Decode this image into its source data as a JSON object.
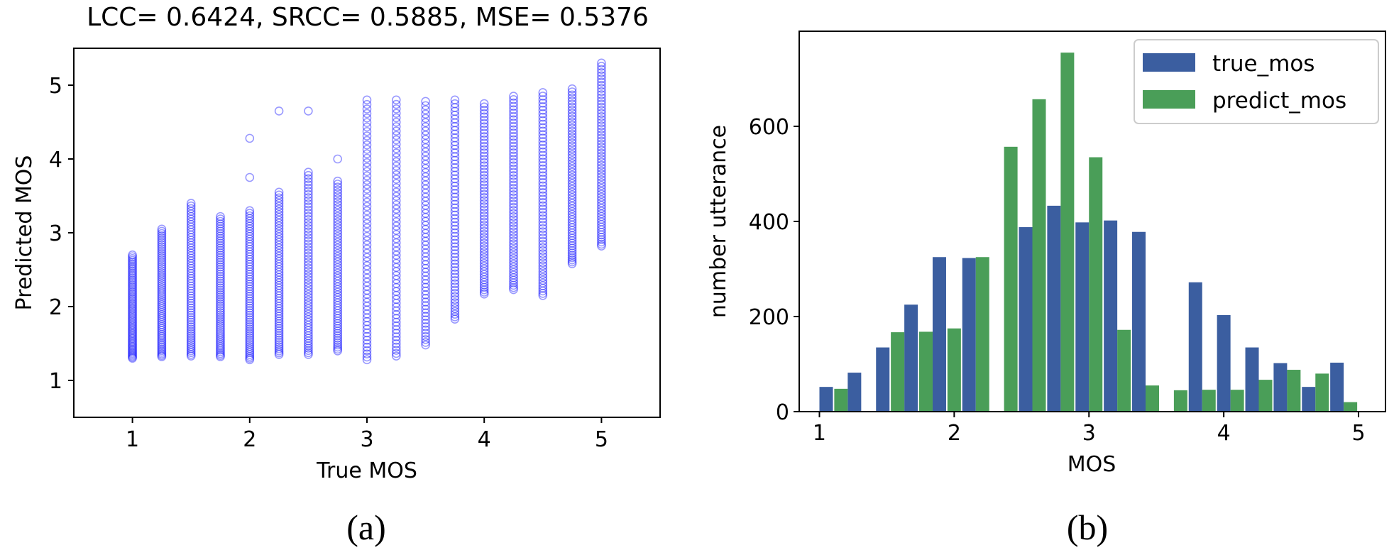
{
  "chart_data": [
    {
      "type": "scatter",
      "panel": "(a)",
      "title": "LCC= 0.6424, SRCC= 0.5885, MSE= 0.5376",
      "xlabel": "True MOS",
      "ylabel": "Predicted MOS",
      "xlim": [
        0.5,
        5.5
      ],
      "ylim": [
        0.5,
        5.5
      ],
      "xticks": [
        "1",
        "2",
        "3",
        "4",
        "5"
      ],
      "yticks": [
        "1",
        "2",
        "3",
        "4",
        "5"
      ],
      "marker": "hollow circle",
      "color": "#0000ff",
      "columns": [
        {
          "x": 1.0,
          "y_min": 1.3,
          "y_max": 2.7
        },
        {
          "x": 1.25,
          "y_min": 1.32,
          "y_max": 3.05
        },
        {
          "x": 1.5,
          "y_min": 1.33,
          "y_max": 3.4
        },
        {
          "x": 1.75,
          "y_min": 1.32,
          "y_max": 3.22
        },
        {
          "x": 2.0,
          "y_min": 1.28,
          "y_max": 3.3,
          "outliers": [
            3.75,
            4.28
          ]
        },
        {
          "x": 2.25,
          "y_min": 1.35,
          "y_max": 3.55,
          "outliers": [
            4.65
          ]
        },
        {
          "x": 2.5,
          "y_min": 1.35,
          "y_max": 3.82,
          "outliers": [
            4.65
          ]
        },
        {
          "x": 2.75,
          "y_min": 1.4,
          "y_max": 3.7,
          "outliers": [
            4.0
          ]
        },
        {
          "x": 3.0,
          "y_min": 1.28,
          "y_max": 4.8
        },
        {
          "x": 3.25,
          "y_min": 1.33,
          "y_max": 4.8
        },
        {
          "x": 3.5,
          "y_min": 1.48,
          "y_max": 4.78
        },
        {
          "x": 3.75,
          "y_min": 1.83,
          "y_max": 4.8
        },
        {
          "x": 4.0,
          "y_min": 2.17,
          "y_max": 4.75
        },
        {
          "x": 4.25,
          "y_min": 2.23,
          "y_max": 4.85
        },
        {
          "x": 4.5,
          "y_min": 2.15,
          "y_max": 4.9
        },
        {
          "x": 4.75,
          "y_min": 2.58,
          "y_max": 4.95
        },
        {
          "x": 5.0,
          "y_min": 2.82,
          "y_max": 5.3
        }
      ]
    },
    {
      "type": "bar",
      "panel": "(b)",
      "xlabel": "MOS",
      "ylabel": "number utterance",
      "xlim": [
        0.85,
        5.2
      ],
      "ylim": [
        0,
        800
      ],
      "xticks": [
        "1",
        "2",
        "3",
        "4",
        "5"
      ],
      "yticks": [
        "0",
        "200",
        "400",
        "600"
      ],
      "legend_position": "top-right",
      "bar_width": 0.1,
      "series": [
        {
          "name": "true_mos",
          "color": "#3b5ea0",
          "x": [
            1.05,
            1.26,
            1.47,
            1.68,
            1.89,
            2.11,
            2.53,
            2.74,
            2.95,
            3.16,
            3.37,
            3.79,
            4.0,
            4.21,
            4.42,
            4.63,
            4.84
          ],
          "values": [
            52,
            82,
            135,
            225,
            325,
            323,
            388,
            433,
            398,
            402,
            378,
            272,
            203,
            135,
            102,
            52,
            103
          ]
        },
        {
          "name": "predict_mos",
          "color": "#4a9e58",
          "x": [
            1.16,
            1.37,
            1.58,
            1.79,
            2.0,
            2.21,
            2.42,
            2.63,
            2.84,
            3.05,
            3.26,
            3.47,
            3.68,
            3.89,
            4.1,
            4.31,
            4.52,
            4.73,
            4.94
          ],
          "values": [
            48,
            0,
            167,
            168,
            175,
            325,
            557,
            657,
            755,
            535,
            172,
            55,
            45,
            46,
            46,
            67,
            88,
            80,
            20
          ]
        }
      ]
    }
  ]
}
